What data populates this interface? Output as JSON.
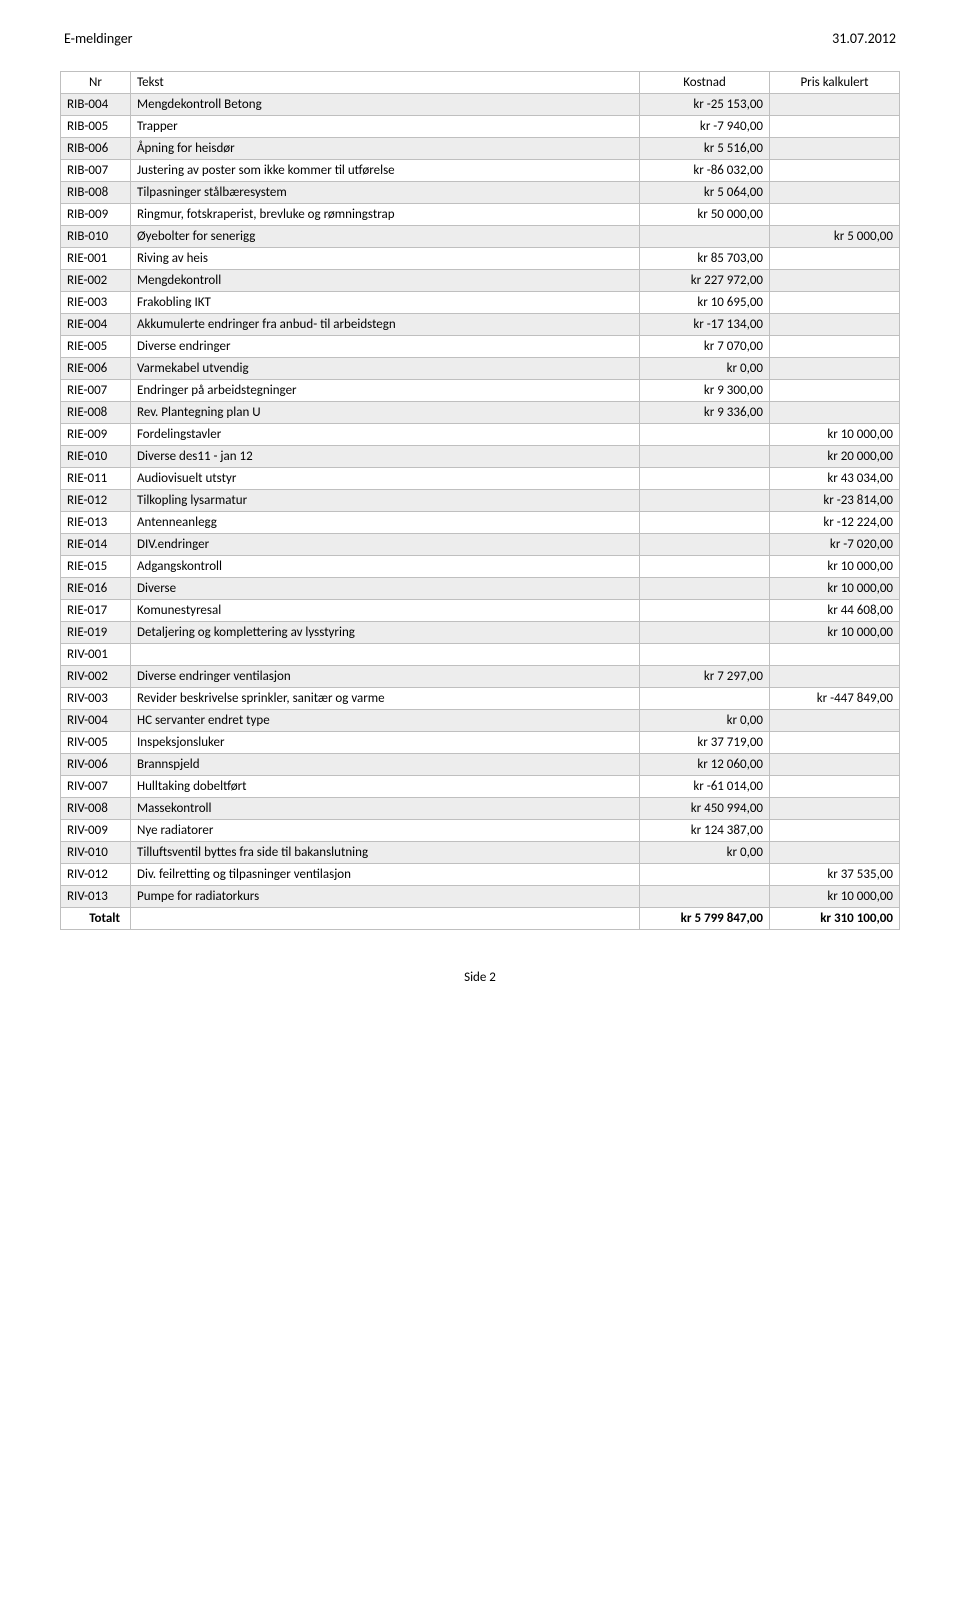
{
  "header": {
    "title": "E-meldinger",
    "date": "31.07.2012"
  },
  "table": {
    "columns": [
      "Nr",
      "Tekst",
      "Kostnad",
      "Pris kalkulert"
    ],
    "rows": [
      {
        "nr": "RIB-004",
        "tekst": "Mengdekontroll Betong",
        "kostnad": "kr -25 153,00",
        "pris": ""
      },
      {
        "nr": "RIB-005",
        "tekst": "Trapper",
        "kostnad": "kr -7 940,00",
        "pris": ""
      },
      {
        "nr": "RIB-006",
        "tekst": "Åpning for heisdør",
        "kostnad": "kr 5 516,00",
        "pris": ""
      },
      {
        "nr": "RIB-007",
        "tekst": "Justering av poster som ikke kommer til utførelse",
        "kostnad": "kr -86 032,00",
        "pris": ""
      },
      {
        "nr": "RIB-008",
        "tekst": "Tilpasninger stålbæresystem",
        "kostnad": "kr 5 064,00",
        "pris": ""
      },
      {
        "nr": "RIB-009",
        "tekst": "Ringmur, fotskraperist, brevluke og rømningstrap",
        "kostnad": "kr 50 000,00",
        "pris": ""
      },
      {
        "nr": "RIB-010",
        "tekst": "Øyebolter for senerigg",
        "kostnad": "",
        "pris": "kr 5 000,00"
      },
      {
        "nr": "RIE-001",
        "tekst": "Riving av heis",
        "kostnad": "kr 85 703,00",
        "pris": ""
      },
      {
        "nr": "RIE-002",
        "tekst": "Mengdekontroll",
        "kostnad": "kr 227 972,00",
        "pris": ""
      },
      {
        "nr": "RIE-003",
        "tekst": "Frakobling IKT",
        "kostnad": "kr 10 695,00",
        "pris": ""
      },
      {
        "nr": "RIE-004",
        "tekst": "Akkumulerte endringer fra anbud- til arbeidstegn",
        "kostnad": "kr -17 134,00",
        "pris": ""
      },
      {
        "nr": "RIE-005",
        "tekst": "Diverse endringer",
        "kostnad": "kr 7 070,00",
        "pris": ""
      },
      {
        "nr": "RIE-006",
        "tekst": "Varmekabel utvendig",
        "kostnad": "kr 0,00",
        "pris": ""
      },
      {
        "nr": "RIE-007",
        "tekst": "Endringer på arbeidstegninger",
        "kostnad": "kr 9 300,00",
        "pris": ""
      },
      {
        "nr": "RIE-008",
        "tekst": "Rev. Plantegning plan U",
        "kostnad": "kr 9 336,00",
        "pris": ""
      },
      {
        "nr": "RIE-009",
        "tekst": "Fordelingstavler",
        "kostnad": "",
        "pris": "kr 10 000,00"
      },
      {
        "nr": "RIE-010",
        "tekst": "Diverse des11 - jan 12",
        "kostnad": "",
        "pris": "kr 20 000,00"
      },
      {
        "nr": "RIE-011",
        "tekst": "Audiovisuelt utstyr",
        "kostnad": "",
        "pris": "kr 43 034,00"
      },
      {
        "nr": "RIE-012",
        "tekst": "Tilkopling lysarmatur",
        "kostnad": "",
        "pris": "kr -23 814,00"
      },
      {
        "nr": "RIE-013",
        "tekst": "Antenneanlegg",
        "kostnad": "",
        "pris": "kr -12 224,00"
      },
      {
        "nr": "RIE-014",
        "tekst": "DIV.endringer",
        "kostnad": "",
        "pris": "kr -7 020,00"
      },
      {
        "nr": "RIE-015",
        "tekst": "Adgangskontroll",
        "kostnad": "",
        "pris": "kr 10 000,00"
      },
      {
        "nr": "RIE-016",
        "tekst": "Diverse",
        "kostnad": "",
        "pris": "kr 10 000,00"
      },
      {
        "nr": "RIE-017",
        "tekst": "Komunestyresal",
        "kostnad": "",
        "pris": "kr 44 608,00"
      },
      {
        "nr": "RIE-019",
        "tekst": "Detaljering og komplettering av lysstyring",
        "kostnad": "",
        "pris": "kr 10 000,00"
      },
      {
        "nr": "RIV-001",
        "tekst": "",
        "kostnad": "",
        "pris": ""
      },
      {
        "nr": "RIV-002",
        "tekst": "Diverse endringer ventilasjon",
        "kostnad": "kr 7 297,00",
        "pris": ""
      },
      {
        "nr": "RIV-003",
        "tekst": "Revider beskrivelse sprinkler, sanitær og varme",
        "kostnad": "",
        "pris": "kr -447 849,00"
      },
      {
        "nr": "RIV-004",
        "tekst": "HC servanter endret type",
        "kostnad": "kr 0,00",
        "pris": ""
      },
      {
        "nr": "RIV-005",
        "tekst": "Inspeksjonsluker",
        "kostnad": "kr 37 719,00",
        "pris": ""
      },
      {
        "nr": "RIV-006",
        "tekst": "Brannspjeld",
        "kostnad": "kr 12 060,00",
        "pris": ""
      },
      {
        "nr": "RIV-007",
        "tekst": "Hulltaking dobeltført",
        "kostnad": "kr -61 014,00",
        "pris": ""
      },
      {
        "nr": "RIV-008",
        "tekst": "Massekontroll",
        "kostnad": "kr 450 994,00",
        "pris": ""
      },
      {
        "nr": "RIV-009",
        "tekst": "Nye radiatorer",
        "kostnad": "kr 124 387,00",
        "pris": ""
      },
      {
        "nr": "RIV-010",
        "tekst": "Tilluftsventil byttes fra side til bakanslutning",
        "kostnad": "kr 0,00",
        "pris": ""
      },
      {
        "nr": "RIV-012",
        "tekst": "Div. feilretting og tilpasninger ventilasjon",
        "kostnad": "",
        "pris": "kr 37 535,00"
      },
      {
        "nr": "RIV-013",
        "tekst": "Pumpe for radiatorkurs",
        "kostnad": "",
        "pris": "kr 10 000,00"
      }
    ],
    "total": {
      "label": "Totalt",
      "kostnad": "kr 5 799 847,00",
      "pris": "kr 310 100,00"
    },
    "stripe_color": "#ededed",
    "border_color": "#bfbfbf"
  },
  "footer": {
    "page": "Side 2"
  }
}
